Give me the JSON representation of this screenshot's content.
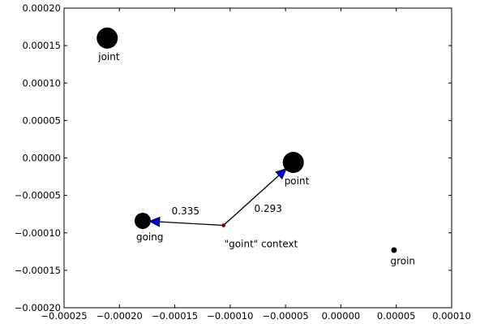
{
  "chart_data": {
    "type": "scatter",
    "title": "",
    "xlabel": "",
    "ylabel": "",
    "xlim": [
      -0.00025,
      0.0001
    ],
    "ylim": [
      -0.0002,
      0.0002
    ],
    "xticks": [
      -0.00025,
      -0.0002,
      -0.00015,
      -0.0001,
      -5e-05,
      0.0,
      5e-05,
      0.0001
    ],
    "xtick_labels": [
      "−0.00025",
      "−0.00020",
      "−0.00015",
      "−0.00010",
      "−0.00005",
      "0.00000",
      "0.00005",
      "0.00010"
    ],
    "yticks": [
      -0.0002,
      -0.00015,
      -0.0001,
      -5e-05,
      0.0,
      5e-05,
      0.0001,
      0.00015,
      0.0002
    ],
    "ytick_labels": [
      "−0.00020",
      "−0.00015",
      "−0.00010",
      "−0.00005",
      "0.00000",
      "0.00005",
      "0.00010",
      "0.00015",
      "0.00020"
    ],
    "grid": false,
    "points": [
      {
        "label": "joint",
        "x": -0.000211,
        "y": 0.00016,
        "size": "large",
        "color": "#000000"
      },
      {
        "label": "point",
        "x": -4.3e-05,
        "y": -6e-06,
        "size": "large",
        "color": "#000000"
      },
      {
        "label": "going",
        "x": -0.000179,
        "y": -8.4e-05,
        "size": "medium",
        "color": "#000000"
      },
      {
        "label": "groin",
        "x": 4.8e-05,
        "y": -0.000123,
        "size": "small",
        "color": "#000000"
      }
    ],
    "context": {
      "label": "\"goint\" context",
      "x": -0.000106,
      "y": -9e-05,
      "color": "#8b0000"
    },
    "arrows": [
      {
        "to": "going",
        "value": "0.335",
        "color": "#0000cc"
      },
      {
        "to": "point",
        "value": "0.293",
        "color": "#0000cc"
      }
    ]
  }
}
